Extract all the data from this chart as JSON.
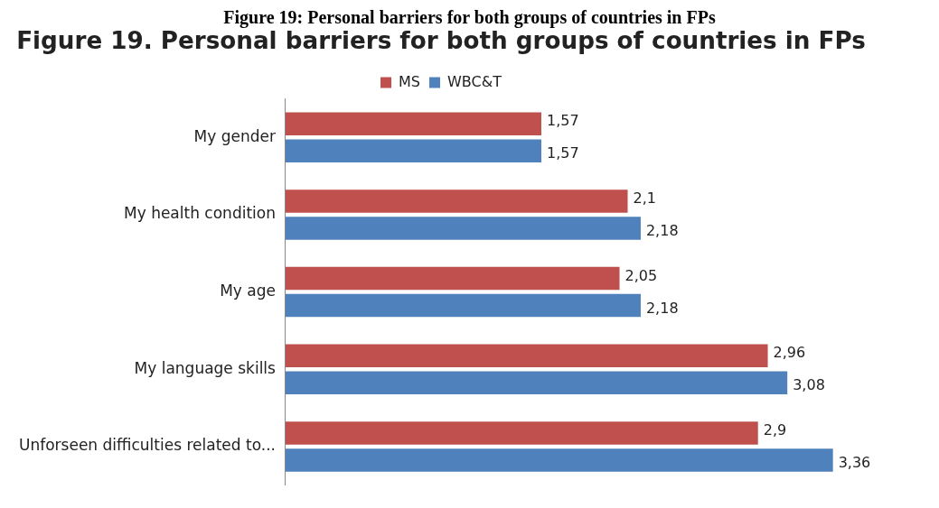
{
  "chart_data": {
    "type": "bar",
    "orientation": "horizontal",
    "title": "Figure 19. Personal barriers for both groups of countries in FPs",
    "annotations": [
      "Figure 19: Personal barriers for both groups of countries in FPs"
    ],
    "categories": [
      "My gender",
      "My health condition",
      "My age",
      "My language skills",
      "Unforseen difficulties related to..."
    ],
    "series": [
      {
        "name": "MS",
        "color": "#c0504d",
        "values": [
          1.57,
          2.1,
          2.05,
          2.96,
          2.9
        ],
        "value_labels": [
          "1,57",
          "2,1",
          "2,05",
          "2,96",
          "2,9"
        ]
      },
      {
        "name": "WBC&T",
        "color": "#4f81bd",
        "values": [
          1.57,
          2.18,
          2.18,
          3.08,
          3.36
        ],
        "value_labels": [
          "1,57",
          "2,18",
          "2,18",
          "3,08",
          "3,36"
        ]
      }
    ],
    "legend": "top",
    "grid": false
  }
}
